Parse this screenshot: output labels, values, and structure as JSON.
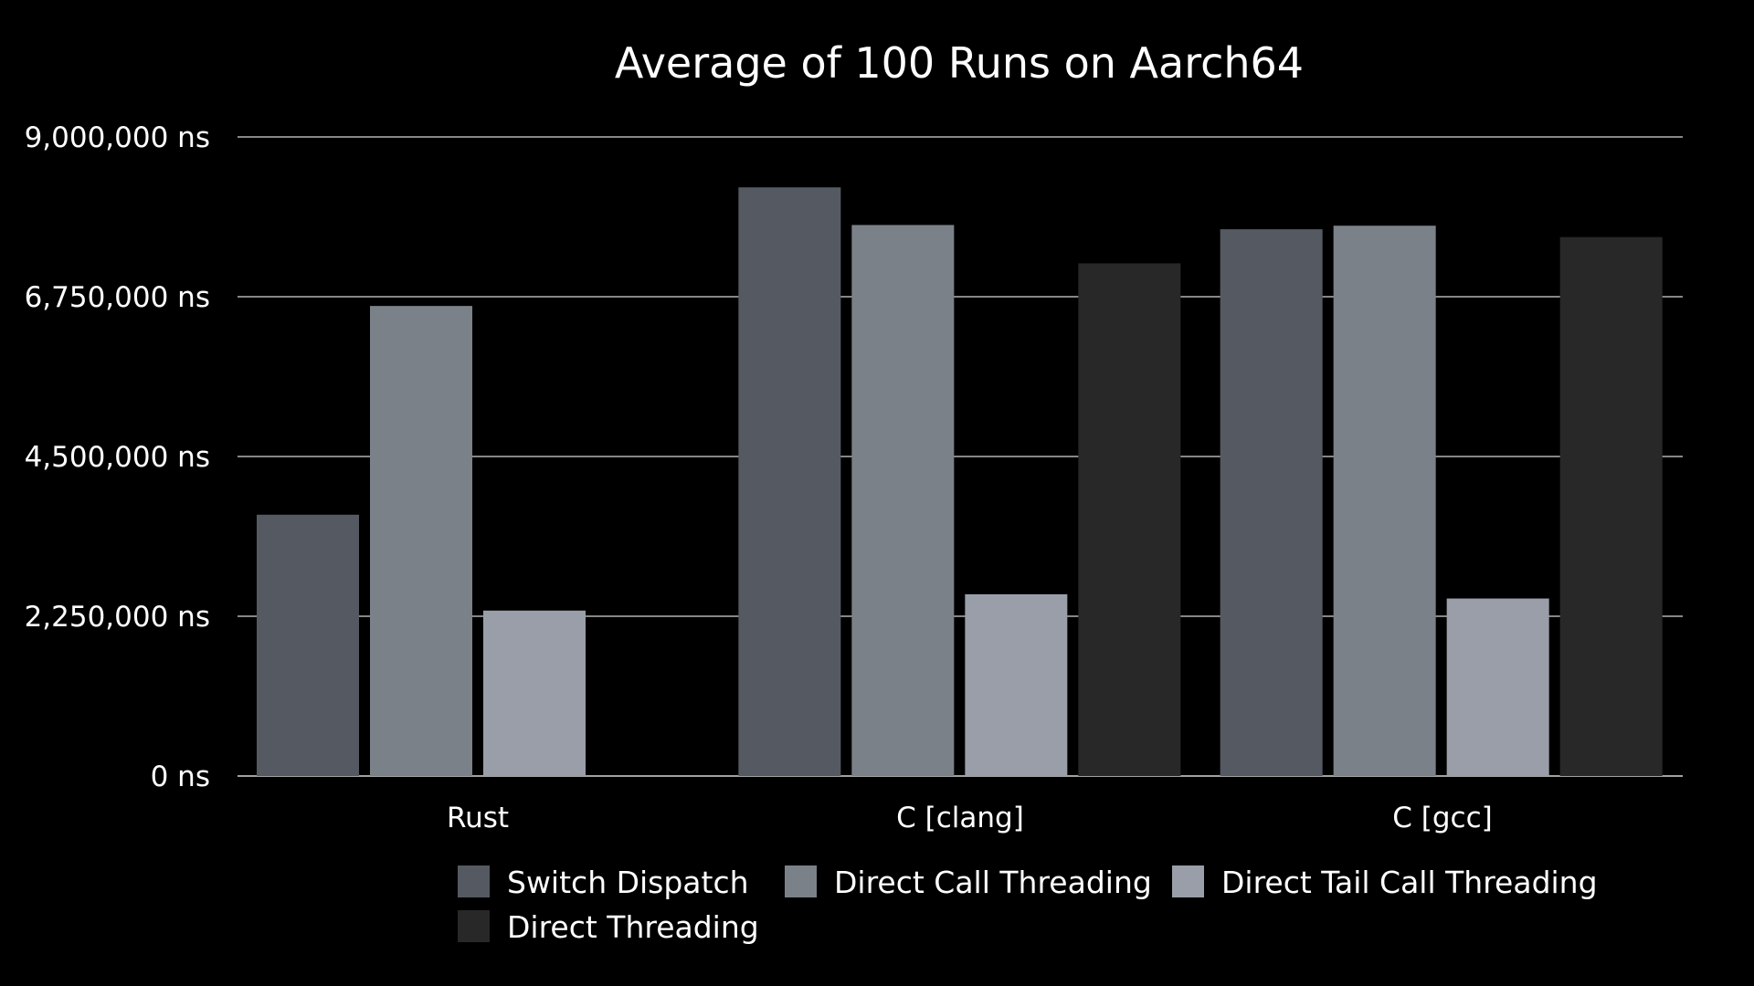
{
  "chart_data": {
    "type": "bar",
    "title": "Average of 100 Runs on Aarch64",
    "xlabel": "",
    "ylabel": "",
    "ylim": [
      0,
      9000000
    ],
    "yticks": [
      0,
      2250000,
      4500000,
      6750000,
      9000000
    ],
    "ytick_labels": [
      "0 ns",
      "2,250,000 ns",
      "4,500,000 ns",
      "6,750,000 ns",
      "9,000,000 ns"
    ],
    "categories": [
      "Rust",
      "C [clang]",
      "C [gcc]"
    ],
    "series": [
      {
        "name": "Switch Dispatch",
        "color": "#555a62",
        "values": [
          3680000,
          8290000,
          7700000
        ]
      },
      {
        "name": "Direct Call Threading",
        "color": "#7b8188",
        "values": [
          6620000,
          7760000,
          7750000
        ]
      },
      {
        "name": "Direct Tail Call Threading",
        "color": "#999ea8",
        "values": [
          2330000,
          2560000,
          2500000
        ]
      },
      {
        "name": "Direct Threading",
        "color": "#282828",
        "values": [
          null,
          7220000,
          7590000
        ]
      }
    ],
    "grid": true,
    "legend_position": "bottom"
  }
}
